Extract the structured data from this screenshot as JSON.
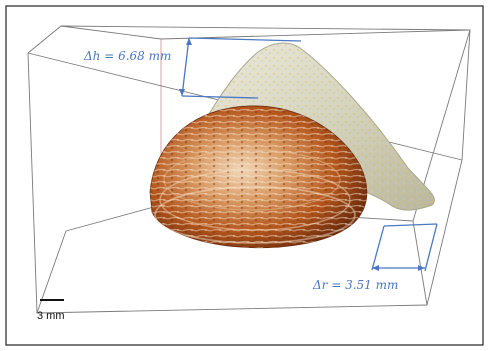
{
  "annotations": {
    "delta_h": "Δh = 6.68 mm",
    "delta_r": "Δr = 3.51 mm"
  },
  "scale_bar": {
    "label": "3 mm"
  },
  "colors": {
    "dimension_lines": "#4a78c2",
    "outer_shell": "#c9c8b0",
    "inner_dome": "#b0561c"
  }
}
